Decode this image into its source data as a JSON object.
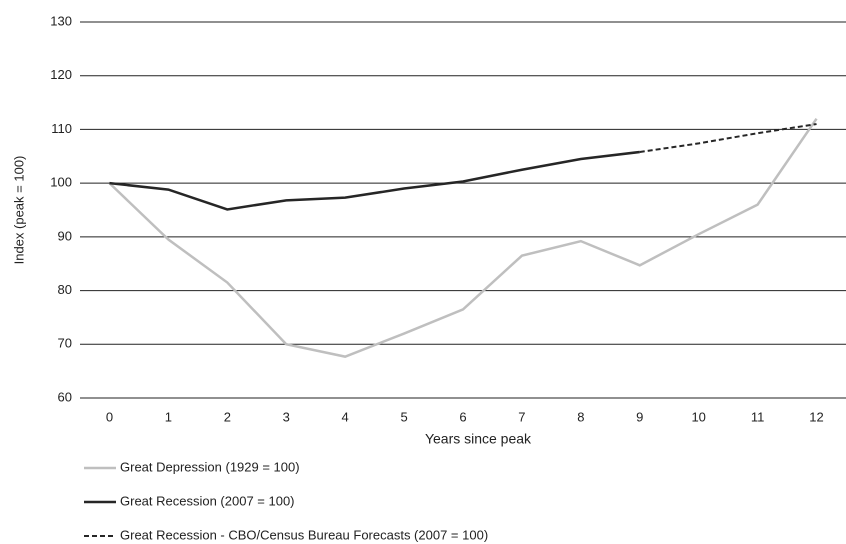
{
  "chart_data": {
    "type": "line",
    "x_label": "Years since peak",
    "y_label": "Index (peak = 100)",
    "categories": [
      "0",
      "1",
      "2",
      "3",
      "4",
      "5",
      "6",
      "7",
      "8",
      "9",
      "10",
      "11",
      "12"
    ],
    "ylim": [
      60,
      130
    ],
    "yticks": [
      60,
      70,
      80,
      90,
      100,
      110,
      120,
      130
    ],
    "grid": true,
    "series": [
      {
        "name": "Great Depression (1929 = 100)",
        "color": "#bfbfbf",
        "dashed": false,
        "values": [
          100,
          89.5,
          81.5,
          70,
          67.7,
          72,
          76.5,
          86.5,
          89.2,
          84.7,
          90.5,
          96,
          112
        ]
      },
      {
        "name": "Great Recession (2007 = 100)",
        "color": "#262626",
        "dashed": false,
        "values": [
          100,
          98.8,
          95.1,
          96.8,
          97.3,
          99,
          100.3,
          102.5,
          104.5,
          105.8,
          null,
          null,
          null
        ]
      },
      {
        "name": "Great Recession - CBO/Census Bureau Forecasts (2007 = 100)",
        "color": "#262626",
        "dashed": true,
        "values": [
          null,
          null,
          null,
          null,
          null,
          null,
          null,
          null,
          null,
          105.8,
          107.4,
          109.3,
          111
        ]
      }
    ]
  }
}
